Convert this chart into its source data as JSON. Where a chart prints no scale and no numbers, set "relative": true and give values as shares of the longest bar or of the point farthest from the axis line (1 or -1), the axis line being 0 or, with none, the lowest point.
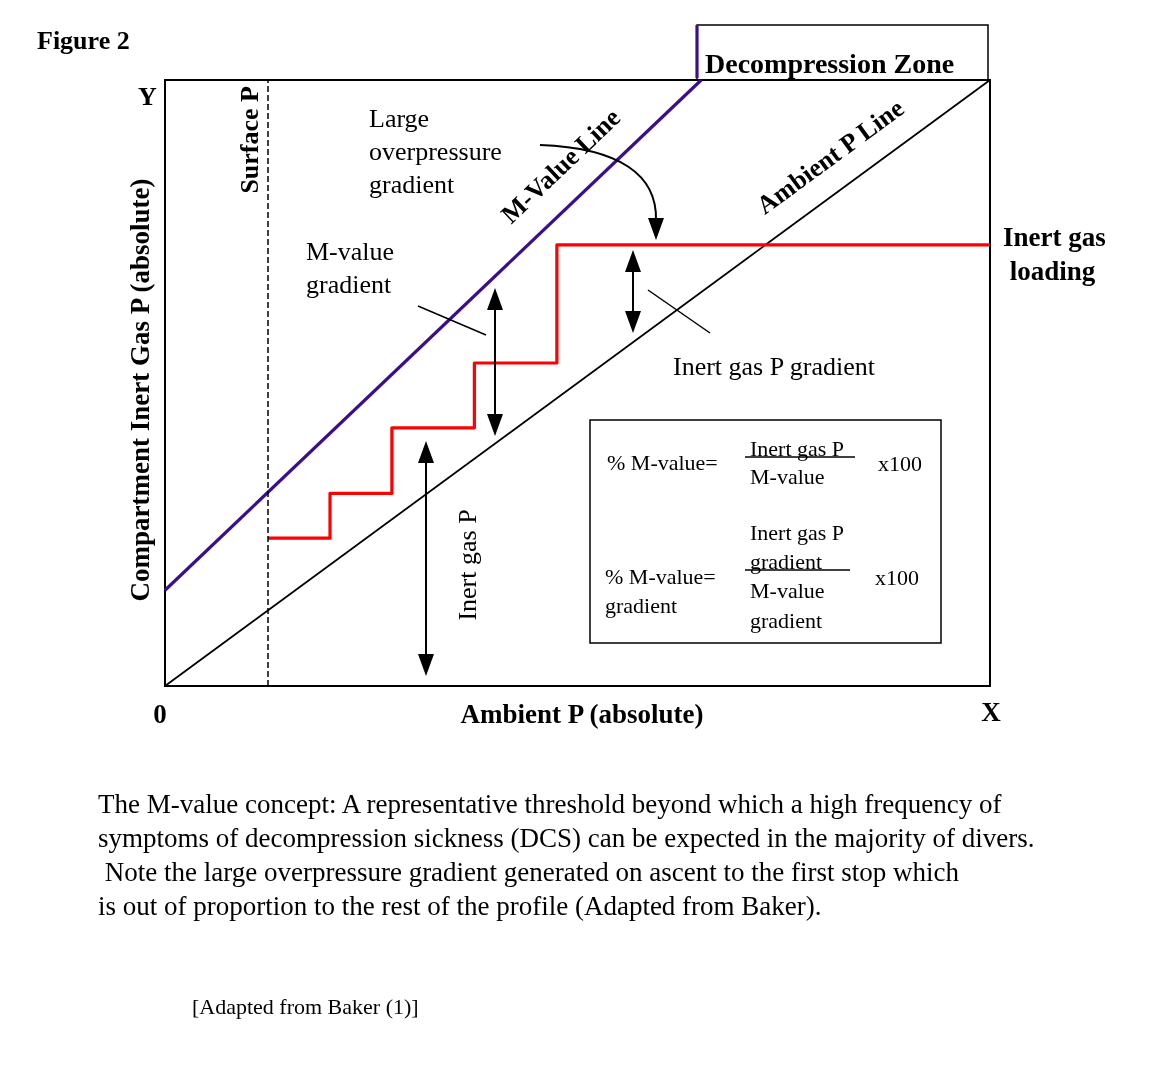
{
  "chart_data": {
    "type": "line",
    "title": "Figure 2",
    "xlabel": "Ambient P (absolute)",
    "ylabel": "Compartment Inert Gas P (absolute)",
    "relative": true,
    "marker": "none",
    "line_style": "solid",
    "categories": [
      null,
      null,
      null,
      null,
      null,
      null,
      null,
      null,
      null,
      null,
      null,
      null,
      null,
      null,
      null,
      null,
      null,
      null,
      null,
      null,
      null,
      null,
      null,
      null,
      null,
      null,
      null,
      null,
      null,
      null,
      null,
      null,
      null,
      null,
      null,
      null,
      null,
      null,
      null,
      null,
      null
    ],
    "series": [
      {
        "name": "M-Value Line",
        "color": "#3b0f8c",
        "values": [
          0.158,
          null,
          null,
          null,
          null,
          null,
          null,
          null,
          null,
          null,
          null,
          null,
          null,
          null,
          null,
          null,
          null,
          null,
          null,
          null,
          null,
          null,
          null,
          null,
          null,
          null,
          1,
          null,
          null,
          null,
          null,
          null,
          null,
          null,
          null,
          null,
          null,
          null,
          null,
          null,
          null
        ]
      },
      {
        "name": "Ambient P Line",
        "color": "#000000",
        "values": [
          0,
          null,
          null,
          null,
          null,
          null,
          null,
          null,
          null,
          null,
          null,
          null,
          null,
          null,
          null,
          null,
          null,
          null,
          null,
          null,
          null,
          null,
          null,
          null,
          null,
          null,
          null,
          null,
          null,
          null,
          null,
          null,
          null,
          null,
          null,
          null,
          null,
          null,
          null,
          null,
          1
        ]
      },
      {
        "name": "Inert gas loading",
        "type": "step",
        "color": "#ff0000",
        "values": [
          null,
          null,
          null,
          null,
          null,
          0.244,
          0.244,
          0.244,
          0.318,
          0.318,
          0.318,
          0.426,
          0.426,
          0.426,
          0.426,
          0.533,
          0.533,
          0.533,
          0.533,
          0.728,
          0.728,
          0.728,
          0.728,
          0.728,
          0.728,
          0.728,
          0.728,
          0.728,
          0.728,
          0.728,
          0.728,
          0.728,
          0.728,
          0.728,
          0.728,
          0.728,
          0.728,
          0.728,
          0.728,
          0.728,
          0.728
        ]
      }
    ],
    "ref_lines": [
      {
        "axis": "x",
        "label": "Surface P",
        "line_style": "dashed",
        "color": "#000000"
      }
    ],
    "annotations": [
      "Y",
      "Decompression Zone",
      "Large overpressure gradient",
      "M-value gradient",
      "Inert gas P gradient",
      "Inert gas P",
      "% M-value=",
      "Inert gas P",
      "M-value",
      "x100",
      "% M-value=",
      "gradient",
      "Inert gas P",
      "gradient",
      "M-value",
      "gradient",
      "x100",
      "The M-value concept: A representative threshold beyond which a high frequency of symptoms of decompression sickness (DCS) can be expected in the majority of divers. Note the large overpressure gradient generated on ascent to the first stop which is out of proportion to the rest of the profile (Adapted from Baker).",
      "[Adapted from Baker (1)]",
      "0",
      "X"
    ]
  }
}
